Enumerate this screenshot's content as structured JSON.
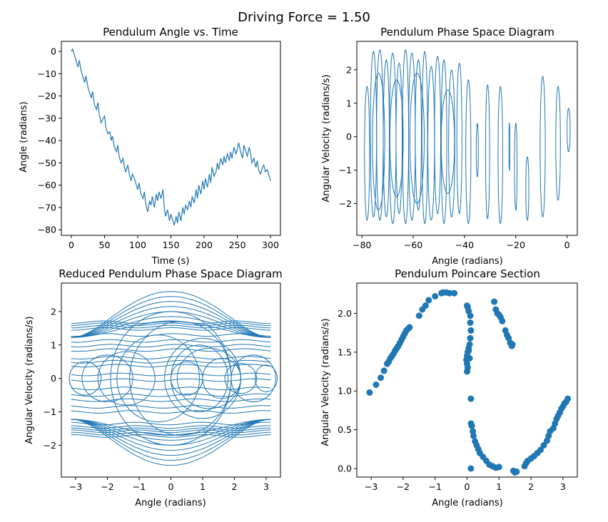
{
  "figure": {
    "suptitle": "Driving Force = 1.50"
  },
  "colors": {
    "series": "#1f77b4",
    "axes": "#000000",
    "background": "#ffffff"
  },
  "chart_data": [
    {
      "id": "angle_time",
      "type": "line",
      "title": "Pendulum Angle vs. Time",
      "xlabel": "Time (s)",
      "ylabel": "Angle (radians)",
      "xlim": [
        -15,
        315
      ],
      "ylim": [
        -82.5,
        4.5
      ],
      "xticks": [
        0,
        50,
        100,
        150,
        200,
        250,
        300
      ],
      "yticks": [
        0,
        -10,
        -20,
        -30,
        -40,
        -50,
        -60,
        -70,
        -80
      ],
      "grid": false,
      "x": [
        0,
        2,
        5,
        8,
        10,
        12,
        15,
        18,
        20,
        22,
        25,
        28,
        30,
        32,
        35,
        38,
        40,
        42,
        45,
        48,
        50,
        52,
        55,
        58,
        60,
        62,
        65,
        68,
        70,
        72,
        75,
        78,
        80,
        82,
        85,
        88,
        90,
        92,
        95,
        98,
        100,
        102,
        105,
        108,
        110,
        112,
        115,
        118,
        120,
        122,
        125,
        128,
        130,
        132,
        135,
        138,
        140,
        142,
        145,
        148,
        150,
        152,
        155,
        158,
        160,
        162,
        165,
        168,
        170,
        172,
        175,
        178,
        180,
        182,
        185,
        188,
        190,
        192,
        195,
        198,
        200,
        202,
        205,
        208,
        210,
        212,
        215,
        218,
        220,
        222,
        225,
        228,
        230,
        232,
        235,
        238,
        240,
        242,
        245,
        248,
        250,
        252,
        255,
        258,
        260,
        262,
        265,
        268,
        270,
        272,
        275,
        278,
        280,
        282,
        285,
        288,
        290,
        292,
        295,
        298,
        300
      ],
      "y": [
        0,
        1,
        -2,
        -5,
        -7,
        -4,
        -9,
        -12,
        -14,
        -11,
        -16,
        -19,
        -21,
        -18,
        -24,
        -26,
        -23,
        -28,
        -32,
        -30,
        -29,
        -34,
        -37,
        -36,
        -40,
        -38,
        -43,
        -45,
        -42,
        -47,
        -50,
        -48,
        -52,
        -54,
        -51,
        -56,
        -58,
        -55,
        -57,
        -60,
        -62,
        -59,
        -64,
        -66,
        -63,
        -68,
        -72,
        -67,
        -69,
        -65,
        -70,
        -64,
        -67,
        -63,
        -66,
        -62,
        -70,
        -74,
        -71,
        -76,
        -73,
        -75,
        -78,
        -74,
        -77,
        -72,
        -76,
        -70,
        -73,
        -69,
        -71,
        -67,
        -70,
        -65,
        -68,
        -62,
        -66,
        -60,
        -64,
        -58,
        -62,
        -57,
        -61,
        -55,
        -59,
        -52,
        -56,
        -54,
        -50,
        -53,
        -48,
        -51,
        -47,
        -50,
        -46,
        -49,
        -45,
        -48,
        -43,
        -46,
        -44,
        -41,
        -45,
        -48,
        -42,
        -44,
        -47,
        -43,
        -46,
        -50,
        -48,
        -52,
        -49,
        -53,
        -55,
        -52,
        -51,
        -54,
        -53,
        -56,
        -58
      ]
    },
    {
      "id": "phase_space",
      "type": "line",
      "title": "Pendulum Phase Space Diagram",
      "xlabel": "Angle (radians)",
      "ylabel": "Angular Velocity (radians/s)",
      "xlim": [
        -82,
        4
      ],
      "ylim": [
        -2.95,
        2.85
      ],
      "xticks": [
        -80,
        -60,
        -40,
        -20,
        0
      ],
      "yticks": [
        2,
        1,
        0,
        -1,
        -2
      ],
      "grid": false,
      "loops": [
        {
          "cx": 0.6,
          "w": 0.6,
          "top": 0.85,
          "bot": -0.45
        },
        {
          "cx": -3.5,
          "w": 0.9,
          "top": 1.5,
          "bot": -1.9
        },
        {
          "cx": -9.5,
          "w": 1.0,
          "top": 1.8,
          "bot": -2.4
        },
        {
          "cx": -15.5,
          "w": 0.6,
          "top": -0.6,
          "bot": -2.5
        },
        {
          "cx": -20,
          "w": 0.5,
          "top": 0.4,
          "bot": -2.2
        },
        {
          "cx": -22.5,
          "w": 0.2,
          "top": 0.4,
          "bot": -1.0
        },
        {
          "cx": -26,
          "w": 0.9,
          "top": 1.5,
          "bot": -2.6
        },
        {
          "cx": -31,
          "w": 0.8,
          "top": 1.55,
          "bot": -2.45
        },
        {
          "cx": -35,
          "w": 0.4,
          "top": 0.4,
          "bot": -1.2
        },
        {
          "cx": -38.5,
          "w": 1.0,
          "top": 1.7,
          "bot": -2.6
        },
        {
          "cx": -42,
          "w": 1.0,
          "top": 2.2,
          "bot": -2.3
        },
        {
          "cx": -45,
          "w": 1.2,
          "top": 2.0,
          "bot": -2.4
        },
        {
          "cx": -48,
          "w": 1.1,
          "top": 2.3,
          "bot": -2.6
        },
        {
          "cx": -50.5,
          "w": 1.2,
          "top": 2.4,
          "bot": -2.3
        },
        {
          "cx": -53,
          "w": 1.3,
          "top": 2.1,
          "bot": -2.5
        },
        {
          "cx": -55.5,
          "w": 1.1,
          "top": 2.55,
          "bot": -2.6
        },
        {
          "cx": -58,
          "w": 1.2,
          "top": 2.3,
          "bot": -2.2
        },
        {
          "cx": -60.5,
          "w": 1.3,
          "top": 2.5,
          "bot": -2.5
        },
        {
          "cx": -63,
          "w": 1.2,
          "top": 2.6,
          "bot": -2.6
        },
        {
          "cx": -65.5,
          "w": 1.2,
          "top": 2.2,
          "bot": -2.3
        },
        {
          "cx": -68,
          "w": 1.3,
          "top": 2.5,
          "bot": -2.6
        },
        {
          "cx": -70.5,
          "w": 1.2,
          "top": 2.3,
          "bot": -2.4
        },
        {
          "cx": -73,
          "w": 1.3,
          "top": 2.6,
          "bot": -2.5
        },
        {
          "cx": -75.5,
          "w": 1.2,
          "top": 2.55,
          "bot": -2.4
        },
        {
          "cx": -78,
          "w": 1.0,
          "top": 1.5,
          "bot": -2.5
        },
        {
          "cx": -46.5,
          "w": 2.6,
          "top": 1.4,
          "bot": -1.7
        },
        {
          "cx": -58.5,
          "w": 2.8,
          "top": 1.9,
          "bot": -2.0
        },
        {
          "cx": -66.5,
          "w": 2.6,
          "top": 1.7,
          "bot": -1.8
        },
        {
          "cx": -73.5,
          "w": 2.4,
          "top": 1.9,
          "bot": -2.2
        }
      ]
    },
    {
      "id": "reduced_phase",
      "type": "line",
      "title": "Reduced Pendulum Phase Space Diagram",
      "xlabel": "Angle (radians)",
      "ylabel": "Angular Velocity (radians/s)",
      "xlim": [
        -3.45,
        3.45
      ],
      "ylim": [
        -2.95,
        2.85
      ],
      "xticks": [
        -3,
        -2,
        -1,
        0,
        1,
        2,
        3
      ],
      "yticks": [
        2,
        1,
        0,
        -1,
        -2
      ],
      "grid": false,
      "lines": [
        1.68,
        1.62,
        1.55,
        1.48,
        1.3,
        1.12,
        0.98,
        0.85,
        0.62,
        0.5,
        0.38,
        0.12,
        -0.05,
        -0.3,
        -0.5,
        -0.65,
        -0.85,
        -1.0,
        -1.35,
        -1.45,
        -1.52,
        -1.58,
        -1.65,
        -1.72
      ],
      "orbits": [
        2.6,
        2.45,
        2.3,
        2.15,
        2.0,
        1.85,
        1.7
      ],
      "ellipses": [
        {
          "cx": 0.0,
          "rx": 1.9,
          "ry": 2.0
        },
        {
          "cx": 0.3,
          "rx": 1.6,
          "ry": 1.7
        },
        {
          "cx": -0.4,
          "rx": 1.3,
          "ry": 1.3
        },
        {
          "cx": 1.0,
          "rx": 1.2,
          "ry": 1.2
        },
        {
          "cx": 0.9,
          "rx": 0.9,
          "ry": 1.0
        },
        {
          "cx": 1.2,
          "rx": 1.0,
          "ry": 0.9
        },
        {
          "cx": -1.4,
          "rx": 0.9,
          "ry": 0.8
        },
        {
          "cx": -2.0,
          "rx": 0.8,
          "ry": 0.7
        },
        {
          "cx": -2.7,
          "rx": 0.5,
          "ry": 0.5
        },
        {
          "cx": 2.2,
          "rx": 0.5,
          "ry": 0.45
        },
        {
          "cx": 2.6,
          "rx": 0.7,
          "ry": 0.7
        },
        {
          "cx": 3.0,
          "rx": 0.35,
          "ry": 0.4
        },
        {
          "cx": 0.5,
          "rx": 0.5,
          "ry": 0.5
        },
        {
          "cx": 1.6,
          "rx": 0.6,
          "ry": 0.6
        }
      ]
    },
    {
      "id": "poincare",
      "type": "scatter",
      "title": "Pendulum Poincare Section",
      "xlabel": "Angle (radians)",
      "ylabel": "Angular Velocity (radians/s)",
      "xlim": [
        -3.45,
        3.45
      ],
      "ylim": [
        -0.11,
        2.39
      ],
      "xticks": [
        -3,
        -2,
        -1,
        0,
        1,
        2,
        3
      ],
      "yticks": [
        0.0,
        0.5,
        1.0,
        1.5,
        2.0
      ],
      "ytick_labels": [
        "0.0",
        "0.5",
        "1.0",
        "1.5",
        "2.0"
      ],
      "grid": false,
      "points": [
        [
          -3.05,
          0.98
        ],
        [
          -2.85,
          1.08
        ],
        [
          -2.7,
          1.17
        ],
        [
          -2.6,
          1.26
        ],
        [
          -2.5,
          1.35
        ],
        [
          -2.45,
          1.38
        ],
        [
          -2.4,
          1.42
        ],
        [
          -2.35,
          1.45
        ],
        [
          -2.3,
          1.48
        ],
        [
          -2.25,
          1.52
        ],
        [
          -2.2,
          1.55
        ],
        [
          -2.15,
          1.58
        ],
        [
          -2.1,
          1.62
        ],
        [
          -2.05,
          1.66
        ],
        [
          -2.0,
          1.7
        ],
        [
          -1.95,
          1.74
        ],
        [
          -1.9,
          1.78
        ],
        [
          -1.85,
          1.8
        ],
        [
          -1.8,
          1.82
        ],
        [
          -1.4,
          2.05
        ],
        [
          -1.3,
          2.1
        ],
        [
          -1.5,
          1.97
        ],
        [
          -1.2,
          2.17
        ],
        [
          -1.0,
          2.22
        ],
        [
          -0.8,
          2.26
        ],
        [
          -0.75,
          2.27
        ],
        [
          -0.65,
          2.27
        ],
        [
          -0.55,
          2.26
        ],
        [
          -0.4,
          2.26
        ],
        [
          0.0,
          2.1
        ],
        [
          0.02,
          2.08
        ],
        [
          0.05,
          2.03
        ],
        [
          0.1,
          1.97
        ],
        [
          0.1,
          1.88
        ],
        [
          0.12,
          1.78
        ],
        [
          0.1,
          1.68
        ],
        [
          0.08,
          1.6
        ],
        [
          0.05,
          1.55
        ],
        [
          0.02,
          1.5
        ],
        [
          0.0,
          1.45
        ],
        [
          -0.02,
          1.4
        ],
        [
          0.0,
          1.35
        ],
        [
          0.02,
          1.3
        ],
        [
          0.0,
          1.25
        ],
        [
          0.05,
          1.52
        ],
        [
          0.08,
          1.42
        ],
        [
          0.12,
          0.9
        ],
        [
          0.12,
          0.58
        ],
        [
          0.15,
          0.55
        ],
        [
          0.18,
          0.48
        ],
        [
          0.2,
          0.42
        ],
        [
          0.25,
          0.35
        ],
        [
          0.3,
          0.3
        ],
        [
          0.35,
          0.25
        ],
        [
          0.4,
          0.2
        ],
        [
          0.5,
          0.15
        ],
        [
          0.6,
          0.1
        ],
        [
          0.7,
          0.05
        ],
        [
          0.8,
          0.03
        ],
        [
          0.9,
          0.01
        ],
        [
          1.0,
          0.02
        ],
        [
          0.12,
          0.0
        ],
        [
          0.85,
          2.15
        ],
        [
          0.9,
          2.05
        ],
        [
          0.95,
          2.0
        ],
        [
          1.0,
          1.98
        ],
        [
          1.05,
          1.95
        ],
        [
          1.1,
          1.9
        ],
        [
          1.2,
          1.78
        ],
        [
          1.25,
          1.72
        ],
        [
          1.3,
          1.68
        ],
        [
          1.35,
          1.62
        ],
        [
          1.4,
          1.58
        ],
        [
          1.42,
          1.6
        ],
        [
          1.45,
          -0.03
        ],
        [
          1.5,
          -0.05
        ],
        [
          1.55,
          -0.04
        ],
        [
          1.8,
          0.03
        ],
        [
          1.85,
          0.07
        ],
        [
          1.9,
          0.1
        ],
        [
          2.0,
          0.13
        ],
        [
          2.1,
          0.16
        ],
        [
          2.2,
          0.2
        ],
        [
          2.3,
          0.24
        ],
        [
          2.4,
          0.3
        ],
        [
          2.5,
          0.36
        ],
        [
          2.55,
          0.42
        ],
        [
          2.6,
          0.48
        ],
        [
          2.7,
          0.52
        ],
        [
          2.75,
          0.58
        ],
        [
          2.8,
          0.64
        ],
        [
          2.85,
          0.68
        ],
        [
          2.9,
          0.72
        ],
        [
          2.95,
          0.77
        ],
        [
          3.0,
          0.8
        ],
        [
          3.05,
          0.84
        ],
        [
          3.1,
          0.86
        ],
        [
          3.15,
          0.9
        ]
      ]
    }
  ]
}
